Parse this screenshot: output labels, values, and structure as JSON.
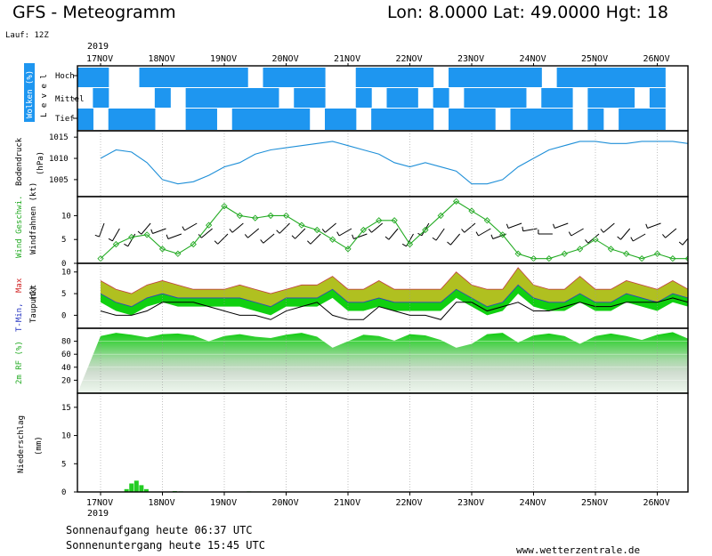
{
  "header": {
    "title": "GFS - Meteogramm",
    "coords": "Lon: 8.0000 Lat: 49.0000 Hgt: 18",
    "run": "Lauf: 12Z",
    "year_top": "2019",
    "year_bottom": "2019"
  },
  "footer": {
    "sunrise": "Sonnenaufgang heute 06:37 UTC",
    "sunset": "Sonnenuntergang heute 15:45 UTC",
    "site": "www.wetterzentrale.de"
  },
  "dates": [
    "17NOV",
    "18NOV",
    "19NOV",
    "20NOV",
    "21NOV",
    "22NOV",
    "23NOV",
    "24NOV",
    "25NOV",
    "26NOV"
  ],
  "colors": {
    "cloud": "#1e96f0",
    "pressure": "#1e8fd8",
    "wind": "#22aa22",
    "precip": "#22cc22",
    "tmax": "#b0c020",
    "tmin_fill": "#10d010",
    "dew": "#000000",
    "rh_top": "#10cc10"
  },
  "chart_data": [
    {
      "type": "heatmap",
      "name": "clouds",
      "ylabel_parts": [
        "Wolken (%)",
        "Level"
      ],
      "levels": [
        "Hoch",
        "Mittel",
        "Tief"
      ],
      "x_days": [
        0,
        9.5
      ],
      "resolution_hours": 6,
      "cover": {
        "hoch": [
          1,
          1,
          0,
          0,
          1,
          1,
          1,
          1,
          1,
          1,
          1,
          0,
          1,
          1,
          1,
          1,
          0,
          0,
          1,
          1,
          1,
          1,
          1,
          0,
          1,
          1,
          1,
          1,
          1,
          1,
          0,
          1,
          1,
          1,
          1,
          1,
          1,
          1
        ],
        "mittel": [
          0,
          1,
          0,
          0,
          0,
          1,
          0,
          1,
          1,
          1,
          1,
          1,
          1,
          0,
          1,
          1,
          0,
          0,
          1,
          0,
          1,
          1,
          0,
          1,
          0,
          1,
          1,
          1,
          1,
          0,
          1,
          1,
          0,
          1,
          1,
          1,
          0,
          1
        ],
        "tief": [
          1,
          0,
          1,
          1,
          1,
          0,
          0,
          1,
          1,
          0,
          1,
          1,
          1,
          1,
          1,
          0,
          1,
          1,
          0,
          1,
          1,
          1,
          1,
          0,
          1,
          1,
          1,
          0,
          1,
          1,
          1,
          1,
          0,
          1,
          0,
          1,
          1,
          1
        ]
      }
    },
    {
      "type": "line",
      "name": "pressure",
      "ylabel": "Bodendruck (hPa)",
      "yticks": [
        1005,
        1010,
        1015
      ],
      "ylim": [
        1001,
        1016.5
      ],
      "x_days": [
        0,
        0.25,
        0.5,
        0.75,
        1,
        1.25,
        1.5,
        1.75,
        2,
        2.25,
        2.5,
        2.75,
        3,
        3.25,
        3.5,
        3.75,
        4,
        4.25,
        4.5,
        4.75,
        5,
        5.25,
        5.5,
        5.75,
        6,
        6.25,
        6.5,
        6.75,
        7,
        7.25,
        7.5,
        7.75,
        8,
        8.25,
        8.5,
        8.75,
        9,
        9.25,
        9.5
      ],
      "values": [
        1010,
        1012,
        1011.5,
        1009,
        1005,
        1004,
        1004.5,
        1006,
        1008,
        1009,
        1011,
        1012,
        1012.5,
        1013,
        1013.5,
        1014,
        1013,
        1012,
        1011,
        1009,
        1008,
        1009,
        1008,
        1007,
        1004,
        1004,
        1005,
        1008,
        1010,
        1012,
        1013,
        1014,
        1014,
        1013.5,
        1013.5,
        1014,
        1014,
        1014,
        1013.5
      ]
    },
    {
      "type": "line",
      "name": "wind",
      "ylabel_parts": [
        "Wind Geschwi.",
        "Windfahnen (kt)"
      ],
      "yticks": [
        0,
        5,
        10
      ],
      "ylim": [
        0,
        14
      ],
      "x_days": [
        0,
        0.25,
        0.5,
        0.75,
        1,
        1.25,
        1.5,
        1.75,
        2,
        2.25,
        2.5,
        2.75,
        3,
        3.25,
        3.5,
        3.75,
        4,
        4.25,
        4.5,
        4.75,
        5,
        5.25,
        5.5,
        5.75,
        6,
        6.25,
        6.5,
        6.75,
        7,
        7.25,
        7.5,
        7.75,
        8,
        8.25,
        8.5,
        8.75,
        9,
        9.25,
        9.5
      ],
      "values": [
        1,
        4,
        5.5,
        6,
        3,
        2,
        4,
        8,
        12,
        10,
        9.5,
        10,
        10,
        8,
        7,
        5,
        3,
        7,
        9,
        9,
        4,
        7,
        10,
        13,
        11,
        9,
        6,
        2,
        1,
        1,
        2,
        3,
        5,
        3,
        2,
        1,
        2,
        1,
        1
      ],
      "barb_dirs_deg": [
        200,
        210,
        210,
        220,
        250,
        250,
        240,
        230,
        225,
        230,
        230,
        230,
        225,
        225,
        225,
        230,
        240,
        250,
        230,
        220,
        210,
        210,
        215,
        220,
        230,
        240,
        250,
        250,
        260,
        270,
        250,
        240,
        230,
        230,
        220,
        240,
        250,
        230,
        220
      ]
    },
    {
      "type": "area",
      "name": "temperature",
      "ylabel_parts": [
        "T-Min,",
        "Max",
        "(C)",
        "Taupunkt"
      ],
      "yticks": [
        0,
        5,
        10
      ],
      "ylim": [
        -3,
        12
      ],
      "x_days": [
        0,
        0.25,
        0.5,
        0.75,
        1,
        1.25,
        1.5,
        1.75,
        2,
        2.25,
        2.5,
        2.75,
        3,
        3.25,
        3.5,
        3.75,
        4,
        4.25,
        4.5,
        4.75,
        5,
        5.25,
        5.5,
        5.75,
        6,
        6.25,
        6.5,
        6.75,
        7,
        7.25,
        7.5,
        7.75,
        8,
        8.25,
        8.5,
        8.75,
        9,
        9.25,
        9.5
      ],
      "tmax": [
        8,
        6,
        5,
        7,
        8,
        7,
        6,
        6,
        6,
        7,
        6,
        5,
        6,
        7,
        7,
        9,
        6,
        6,
        8,
        6,
        6,
        6,
        6,
        10,
        7,
        6,
        6,
        11,
        7,
        6,
        6,
        9,
        6,
        6,
        8,
        7,
        6,
        8,
        6
      ],
      "tmin": [
        5,
        3,
        2,
        4,
        5,
        4,
        4,
        4,
        4,
        4,
        3,
        2,
        4,
        4,
        4,
        6,
        3,
        3,
        4,
        3,
        3,
        3,
        3,
        6,
        4,
        2,
        3,
        7,
        4,
        3,
        3,
        5,
        3,
        3,
        5,
        4,
        3,
        5,
        4
      ],
      "dew": [
        1,
        0,
        0,
        1,
        3,
        3,
        3,
        2,
        1,
        0,
        0,
        -1,
        1,
        2,
        3,
        0,
        -1,
        -1,
        2,
        1,
        0,
        0,
        -1,
        3,
        3,
        1,
        2,
        3,
        1,
        1,
        2,
        3,
        2,
        2,
        3,
        3,
        3,
        4,
        3
      ]
    },
    {
      "type": "area",
      "name": "humidity",
      "ylabel": "2m RF (%)",
      "yticks": [
        20,
        40,
        60,
        80
      ],
      "ylim": [
        0,
        100
      ],
      "x_days": [
        0,
        0.25,
        0.5,
        0.75,
        1,
        1.25,
        1.5,
        1.75,
        2,
        2.25,
        2.5,
        2.75,
        3,
        3.25,
        3.5,
        3.75,
        4,
        4.25,
        4.5,
        4.75,
        5,
        5.25,
        5.5,
        5.75,
        6,
        6.25,
        6.5,
        6.75,
        7,
        7.25,
        7.5,
        7.75,
        8,
        8.25,
        8.5,
        8.75,
        9,
        9.25,
        9.5
      ],
      "values": [
        88,
        93,
        90,
        86,
        91,
        92,
        89,
        80,
        88,
        91,
        87,
        85,
        90,
        93,
        87,
        70,
        80,
        90,
        88,
        81,
        91,
        89,
        82,
        70,
        76,
        91,
        93,
        78,
        89,
        92,
        88,
        76,
        88,
        92,
        88,
        82,
        90,
        94,
        84
      ]
    },
    {
      "type": "bar",
      "name": "precipitation",
      "ylabel": "Niederschlag (mm)",
      "yticks": [
        0,
        5,
        10,
        15
      ],
      "ylim": [
        0,
        17.5
      ],
      "x_days": [
        0.42,
        0.5,
        0.58,
        0.66,
        0.74,
        1.2,
        1.3,
        2.4
      ],
      "values": [
        0.5,
        1.5,
        2,
        1.2,
        0.5,
        0.15,
        0.1,
        0.1
      ]
    }
  ]
}
